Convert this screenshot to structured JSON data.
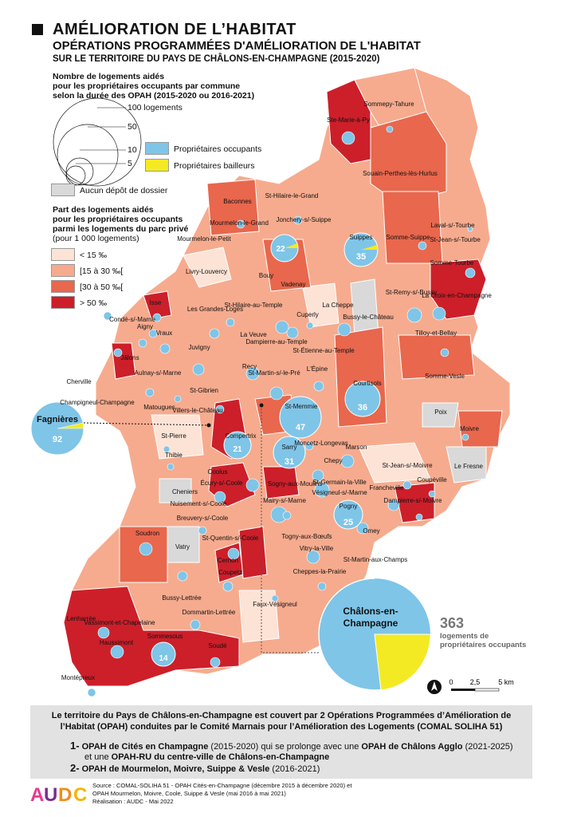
{
  "header": {
    "title": "AMÉLIORATION DE L’HABITAT",
    "subtitle": "OPÉRATIONS PROGRAMMÉES D'AMÉLIORATION DE L'HABITAT",
    "subtitle2": "SUR LE TERRITOIRE DU PAYS DE CHÂLONS-EN-CHAMPAGNE (2015-2020)"
  },
  "legend": {
    "circles_title_l1": "Nombre de logements aidés",
    "circles_title_l2": "pour les propriétaires occupants par commune",
    "circles_title_l3": "selon la durée des OPAH (2015-2020 ou 2016-2021)",
    "circle_sizes": [
      "100 logements",
      "50",
      "10",
      "5"
    ],
    "owner_occupants": "Propriétaires occupants",
    "landlords": "Propriétaires bailleurs",
    "no_file": "Aucun dépôt de dossier",
    "share_title_l1": "Part des logements aidés",
    "share_title_l2": "pour les propriétaires occupants",
    "share_title_l3": "parmi les logements du parc privé",
    "share_title_l4": "(pour 1 000 logements)",
    "classes": [
      "< 15 ‰",
      "[15 à 30 ‰[",
      "[30 à 50 ‰[",
      "> 50 ‰"
    ]
  },
  "colors": {
    "c1": "#fde3d6",
    "c2": "#f6ab8e",
    "c3": "#e8674d",
    "c4": "#cc1f2a",
    "none": "#d9d9d9",
    "owner": "#7fc5e8",
    "landlord": "#f4ea23"
  },
  "map": {
    "communes": [
      "Sommepy-Tahure",
      "Ste-Marie-à-Py",
      "Souain-Perthes-lès-Hurlus",
      "Baconnes",
      "St-Hilaire-le-Grand",
      "Jonchery-s/-Suippe",
      "Suippes",
      "Somme-Suippe",
      "Laval-s/-Tourbe",
      "St-Jean-s/-Tourbe",
      "Somme-Tourbe",
      "La Croix-en-Champagne",
      "Mourmelon-le-Petit",
      "Mourmelon-le-Grand",
      "Livry-Louvercy",
      "Bouy",
      "Vadenay",
      "Bussy-le-Château",
      "St-Remy-s/-Bussy",
      "Tilloy-et-Bellay",
      "Isse",
      "Condé-s/-Marne",
      "Aigny",
      "Vraux",
      "Les Grandes-Loges",
      "St-Hilaire-au-Temple",
      "La Cheppe",
      "Cuperly",
      "La Veuve",
      "Dampierre-au-Temple",
      "St-Étienne-au-Temple",
      "Juvigny",
      "Jâlons",
      "Recy",
      "St-Martin-s/-le-Pré",
      "L'Épine",
      "Somme-Vesle",
      "Aulnay-s/-Marne",
      "Cherville",
      "Champigneul-Champagne",
      "Matougues",
      "St-Gibrien",
      "Courtisols",
      "Poix",
      "St-Memmie",
      "Villers-le-Château",
      "Compertrix",
      "Moivre",
      "St-Pierre",
      "Thibie",
      "Moncetz-Longevas",
      "Marson",
      "Sarry",
      "Chepy",
      "St-Jean-s/-Moivre",
      "Le Fresne",
      "Coupéville",
      "Coolus",
      "Écury-s/-Coole",
      "Sogny-aux-Moulins",
      "St-Germain-la-Ville",
      "Vésigneul-s/-Marne",
      "Francheville",
      "Dampierre-s/-Moivre",
      "Cheniers",
      "Nuisement-s/-Coole",
      "Mairy-s/-Marne",
      "Pogny",
      "Breuvery-s/-Coole",
      "Omey",
      "St-Quentin-s/-Coole",
      "Togny-aux-Bœufs",
      "Soudron",
      "Vitry-la-Ville",
      "Vatry",
      "Cernon",
      "St-Martin-aux-Champs",
      "Coupetz",
      "Cheppes-la-Prairie",
      "Bussy-Lettrée",
      "Lenharrée",
      "Dommartin-Lettrée",
      "Faux-Vésigneul",
      "Vassimont-et-Chapelaine",
      "Haussimont",
      "Sommesous",
      "Soudé",
      "Montépreux"
    ],
    "values": {
      "fagnieres": "92",
      "chalons": "363",
      "st_memmie": "47",
      "courtisols": "36",
      "suippes": "35",
      "sarry": "31",
      "pogny": "25",
      "mourmelon": "22",
      "compertrix": "21",
      "sommesous": "14"
    },
    "fagnieres_label": "Fagnières",
    "chalons_label_l1": "Châlons-en-",
    "chalons_label_l2": "Champagne",
    "chalons_total": "363",
    "chalons_caption_l1": "logements de",
    "chalons_caption_l2": "propriétaires occupants",
    "scale": [
      "0",
      "2,5",
      "5 km"
    ]
  },
  "footer": {
    "lead_l1": "Le territoire du Pays de Châlons-en-Champagne est couvert par 2 Opérations Programmées d’Amélioration de",
    "lead_l2": "l’Habitat (OPAH) conduites par le Comité Marnais pour l’Amélioration des Logements (COMAL SOLIHA 51)",
    "item1_num": "1-",
    "item1_a": "OPAH de Cités en Champagne",
    "item1_b": "(2015-2020) qui se prolonge avec une",
    "item1_c": "OPAH de Châlons Agglo",
    "item1_d": "(2021-2025)",
    "item1_e": "et une",
    "item1_f": "OPAH-RU du centre-ville de Châlons-en-Champagne",
    "item2_num": "2-",
    "item2_a": "OPAH de Mourmelon, Moivre, Suippe & Vesle",
    "item2_b": "(2016-2021)"
  },
  "source": {
    "l1": "Source : COMAL-SOLIHA 51 - OPAH Cités-en-Champagne (décembre 2015 à décembre 2020) et",
    "l2": "OPAH Mourmelon, Moivre, Coole, Suippe & Vesle (mai 2016 à mai 2021)",
    "l3": "Réalisation : AUDC - Mai 2022",
    "logo": "AUDC"
  }
}
